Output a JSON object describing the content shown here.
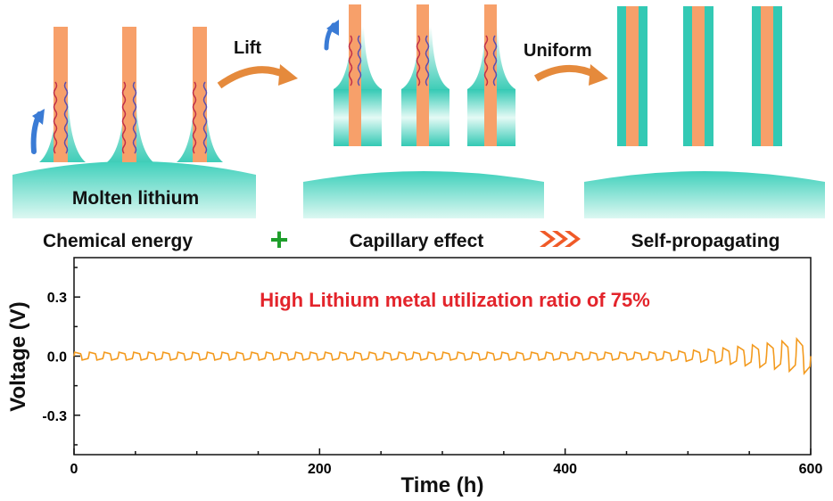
{
  "schematic": {
    "arrow_lift_label": "Lift",
    "arrow_uniform_label": "Uniform",
    "bath_label": "Molten lithium",
    "labels": [
      "Chemical energy",
      "Capillary effect",
      "Self-propagating"
    ],
    "plus_symbol": "+",
    "colors": {
      "teal": "#33c9b4",
      "teal_light": "#d9f7f1",
      "fiber": "#f7a06a",
      "arrow_blue": "#3a7bd5",
      "arrow_orange": "#e58a3c",
      "chevron_red": "#f05a28",
      "plus_green": "#1e9e2b"
    }
  },
  "chart_data": {
    "type": "line",
    "annotation": "High Lithium metal utilization ratio of 75%",
    "xlabel": "Time (h)",
    "ylabel": "Voltage (V)",
    "xlim": [
      0,
      600
    ],
    "ylim": [
      -0.5,
      0.5
    ],
    "xticks": [
      "0",
      "200",
      "400",
      "600"
    ],
    "yticks": [
      "0.3",
      "0.0",
      "-0.3"
    ],
    "series": [
      {
        "color": "#f39a1e",
        "cycle_period_h": 12,
        "baseline_v": 0.0,
        "amplitude_start_v": 0.02,
        "amplitude_end_v": 0.1,
        "onset_growth_h": 450,
        "end_h": 600
      }
    ]
  }
}
